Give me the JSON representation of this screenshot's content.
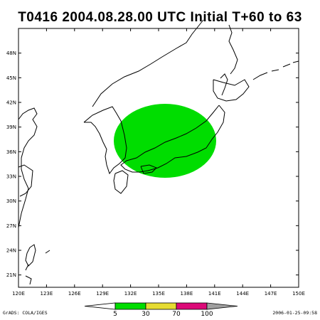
{
  "title": "T0416 2004.08.28.00 UTC Initial T+60 to 63",
  "lat_labels": [
    "48N",
    "45N",
    "42N",
    "39N",
    "36N",
    "33N",
    "30N",
    "27N",
    "24N",
    "21N"
  ],
  "lon_labels": [
    "120E",
    "123E",
    "126E",
    "129E",
    "132E",
    "135E",
    "138E",
    "141E",
    "144E",
    "147E",
    "150E"
  ],
  "map_extent": {
    "lon": [
      120,
      150
    ],
    "lat": [
      19.5,
      51
    ]
  },
  "colorbar": {
    "labels": [
      "5",
      "30",
      "70",
      "100"
    ],
    "colors": [
      "#00dd00",
      "#e6dc32",
      "#dc0a78",
      "#a0a0a0"
    ]
  },
  "footer_left": "GrADS: COLA/IGES",
  "footer_right": "2006-01-25-09:58"
}
